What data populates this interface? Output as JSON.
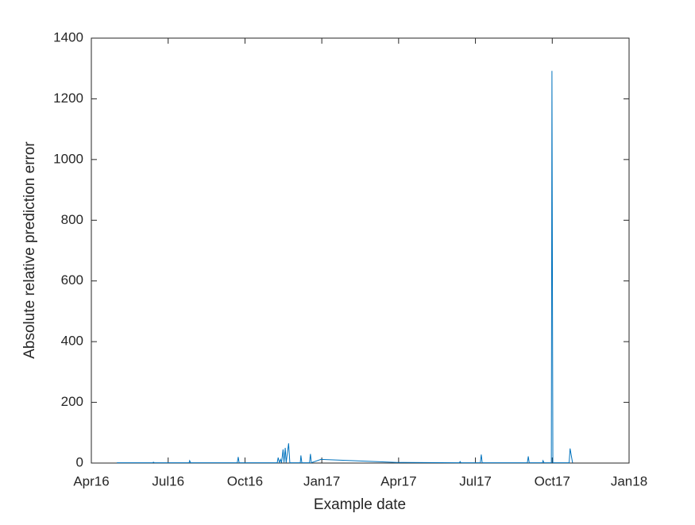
{
  "chart_data": {
    "type": "line",
    "xlabel": "Example date",
    "ylabel": "Absolute relative prediction error",
    "x": [
      2016.333,
      2016.45,
      2016.452,
      2016.455,
      2016.568,
      2016.57,
      2016.573,
      2016.725,
      2016.728,
      2016.731,
      2016.855,
      2016.858,
      2016.862,
      2016.866,
      2016.869,
      2016.874,
      2016.877,
      2016.881,
      2016.884,
      2016.892,
      2016.896,
      2016.93,
      2016.932,
      2016.935,
      2016.96,
      2016.963,
      2016.966,
      2016.997,
      2017.245,
      2017.448,
      2017.45,
      2017.453,
      2017.516,
      2017.519,
      2017.522,
      2017.669,
      2017.672,
      2017.675,
      2017.718,
      2017.72,
      2017.723,
      2017.747,
      2017.749,
      2017.752,
      2017.805,
      2017.808,
      2017.816
    ],
    "values": [
      1,
      1,
      3,
      1,
      1,
      8,
      1,
      1,
      20,
      1,
      1,
      18,
      2,
      12,
      1,
      45,
      2,
      50,
      1,
      65,
      1,
      1,
      25,
      1,
      1,
      30,
      1,
      12,
      2,
      1,
      5,
      1,
      1,
      28,
      1,
      1,
      22,
      1,
      1,
      8,
      1,
      1,
      1292,
      1,
      1,
      48,
      1
    ],
    "color": "#0072bd",
    "xlim": [
      2016.25,
      2018
    ],
    "xticks": [
      {
        "value": 2016.25,
        "label": "Apr16"
      },
      {
        "value": 2016.5,
        "label": "Jul16"
      },
      {
        "value": 2016.75,
        "label": "Oct16"
      },
      {
        "value": 2017,
        "label": "Jan17"
      },
      {
        "value": 2017.25,
        "label": "Apr17"
      },
      {
        "value": 2017.5,
        "label": "Jul17"
      },
      {
        "value": 2017.75,
        "label": "Oct17"
      },
      {
        "value": 2018,
        "label": "Jan18"
      }
    ],
    "ylim": [
      0,
      1400
    ],
    "yticks": [
      0,
      200,
      400,
      600,
      800,
      1000,
      1200,
      1400
    ]
  }
}
